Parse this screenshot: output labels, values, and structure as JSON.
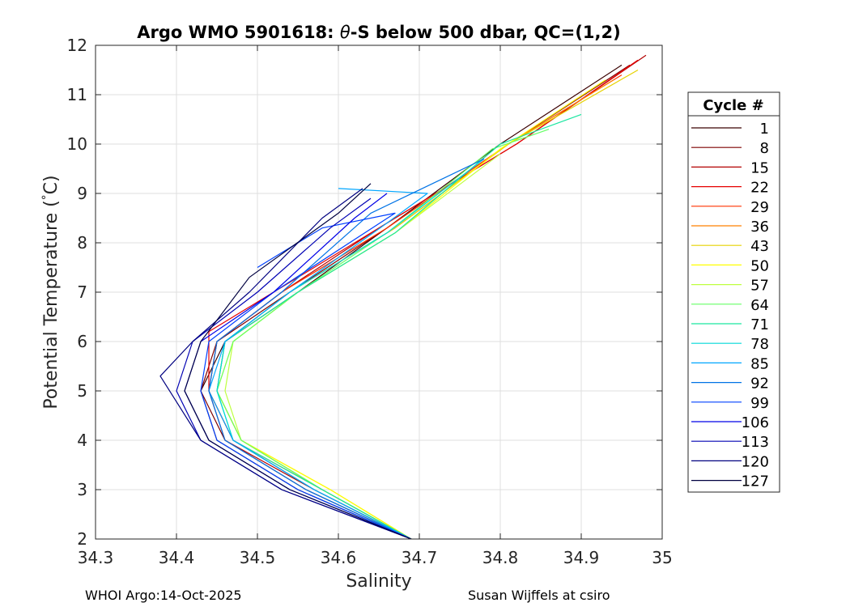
{
  "chart_data": {
    "type": "line",
    "title_prefix": "Argo WMO 5901618: ",
    "title_symbol": "θ",
    "title_suffix": "-S below 500 dbar,  QC=(1,2)",
    "xlabel": "Salinity",
    "ylabel_prefix": "Potential Temperature (",
    "ylabel_degree": "°",
    "ylabel_suffix": "C)",
    "xlim": [
      34.3,
      35
    ],
    "ylim": [
      2,
      12
    ],
    "xticks": [
      "34.3",
      "34.4",
      "34.5",
      "34.6",
      "34.7",
      "34.8",
      "34.9",
      "35"
    ],
    "yticks": [
      "2",
      "3",
      "4",
      "5",
      "6",
      "7",
      "8",
      "9",
      "10",
      "11",
      "12"
    ],
    "grid": true,
    "legend_title": "Cycle #",
    "legend_position": "right",
    "series": [
      {
        "name": "1",
        "color": "#3a0000",
        "x": [
          34.69,
          34.55,
          34.45,
          34.43,
          34.46,
          34.55,
          34.66,
          34.8,
          34.95
        ],
        "y": [
          2.0,
          3.0,
          4.0,
          5.0,
          6.0,
          7.0,
          8.3,
          10.0,
          11.6
        ]
      },
      {
        "name": "8",
        "color": "#7f0000",
        "x": [
          34.69,
          34.56,
          34.46,
          34.43,
          34.45,
          34.54,
          34.66,
          34.81,
          34.96
        ],
        "y": [
          2.0,
          3.0,
          4.0,
          5.0,
          6.0,
          7.0,
          8.3,
          10.0,
          11.6
        ]
      },
      {
        "name": "15",
        "color": "#b30000",
        "x": [
          34.69,
          34.57,
          34.46,
          34.44,
          34.45,
          34.53,
          34.65,
          34.82,
          34.98
        ],
        "y": [
          2.0,
          3.0,
          4.0,
          5.0,
          6.0,
          7.0,
          8.3,
          10.0,
          11.8
        ]
      },
      {
        "name": "22",
        "color": "#e60000",
        "x": [
          34.69,
          34.57,
          34.47,
          34.44,
          34.44,
          34.52,
          34.65,
          34.82,
          34.97
        ],
        "y": [
          2.0,
          3.0,
          4.0,
          5.0,
          6.2,
          7.0,
          8.3,
          10.0,
          11.7
        ]
      },
      {
        "name": "29",
        "color": "#ff3300",
        "x": [
          34.69,
          34.58,
          34.47,
          34.44,
          34.45,
          34.53,
          34.66,
          34.81,
          34.95
        ],
        "y": [
          2.0,
          3.0,
          4.0,
          5.0,
          6.0,
          7.0,
          8.3,
          10.0,
          11.4
        ]
      },
      {
        "name": "36",
        "color": "#ff8000",
        "x": [
          34.69,
          34.58,
          34.48,
          34.45,
          34.46,
          34.54,
          34.67,
          34.81,
          34.94
        ],
        "y": [
          2.0,
          3.0,
          4.0,
          5.0,
          6.0,
          7.0,
          8.3,
          10.0,
          11.3
        ]
      },
      {
        "name": "43",
        "color": "#e6d200",
        "x": [
          34.69,
          34.59,
          34.48,
          34.45,
          34.46,
          34.54,
          34.67,
          34.81,
          34.97
        ],
        "y": [
          2.0,
          3.0,
          4.0,
          5.0,
          6.0,
          7.0,
          8.3,
          10.0,
          11.5
        ]
      },
      {
        "name": "50",
        "color": "#ffff00",
        "x": [
          34.69,
          34.59,
          34.48,
          34.45,
          34.47,
          34.55,
          34.67,
          34.8,
          34.93
        ],
        "y": [
          2.0,
          3.0,
          4.0,
          5.0,
          6.0,
          7.0,
          8.2,
          9.9,
          11.3
        ]
      },
      {
        "name": "57",
        "color": "#bfff40",
        "x": [
          34.69,
          34.58,
          34.48,
          34.46,
          34.47,
          34.55,
          34.67,
          34.8
        ],
        "y": [
          2.0,
          3.0,
          4.0,
          5.0,
          6.0,
          7.0,
          8.2,
          9.8
        ]
      },
      {
        "name": "64",
        "color": "#66ff66",
        "x": [
          34.69,
          34.58,
          34.48,
          34.45,
          34.47,
          34.55,
          34.66,
          34.79,
          34.86
        ],
        "y": [
          2.0,
          3.0,
          4.0,
          5.0,
          6.0,
          7.0,
          8.2,
          9.9,
          10.3
        ]
      },
      {
        "name": "71",
        "color": "#1ae6a0",
        "x": [
          34.69,
          34.58,
          34.47,
          34.45,
          34.46,
          34.55,
          34.67,
          34.8,
          34.9
        ],
        "y": [
          2.0,
          3.0,
          4.0,
          5.0,
          6.0,
          7.0,
          8.2,
          10.0,
          10.6
        ]
      },
      {
        "name": "78",
        "color": "#00d9d9",
        "x": [
          34.69,
          34.57,
          34.47,
          34.45,
          34.46,
          34.54,
          34.66,
          34.78
        ],
        "y": [
          2.0,
          3.0,
          4.0,
          5.0,
          6.0,
          7.0,
          8.2,
          9.7
        ]
      },
      {
        "name": "85",
        "color": "#00a6ff",
        "x": [
          34.69,
          34.57,
          34.47,
          34.44,
          34.46,
          34.54,
          34.66,
          34.71,
          34.6
        ],
        "y": [
          2.0,
          3.0,
          4.0,
          5.0,
          6.0,
          7.0,
          8.4,
          9.0,
          9.1
        ]
      },
      {
        "name": "92",
        "color": "#0073e6",
        "x": [
          34.69,
          34.56,
          34.46,
          34.44,
          34.45,
          34.53,
          34.64,
          34.78
        ],
        "y": [
          2.0,
          3.0,
          4.0,
          5.0,
          6.0,
          7.0,
          8.6,
          9.7
        ]
      },
      {
        "name": "99",
        "color": "#0040ff",
        "x": [
          34.69,
          34.55,
          34.45,
          34.43,
          34.44,
          34.52,
          34.67,
          34.58,
          34.5
        ],
        "y": [
          2.0,
          3.0,
          4.0,
          5.0,
          6.0,
          7.0,
          8.6,
          8.3,
          7.5
        ]
      },
      {
        "name": "106",
        "color": "#0000e6",
        "x": [
          34.69,
          34.54,
          34.44,
          34.41,
          34.43,
          34.52,
          34.62,
          34.66
        ],
        "y": [
          2.0,
          3.0,
          4.0,
          5.0,
          6.0,
          7.0,
          8.5,
          9.0
        ]
      },
      {
        "name": "113",
        "color": "#0000b3",
        "x": [
          34.69,
          34.53,
          34.43,
          34.4,
          34.42,
          34.5,
          34.59,
          34.64
        ],
        "y": [
          2.0,
          3.0,
          4.0,
          5.0,
          6.0,
          7.0,
          8.3,
          8.9
        ]
      },
      {
        "name": "120",
        "color": "#000080",
        "x": [
          34.69,
          34.53,
          34.43,
          34.38,
          34.42,
          34.49,
          34.58,
          34.63
        ],
        "y": [
          2.0,
          3.0,
          4.0,
          5.3,
          6.0,
          7.0,
          8.5,
          9.1
        ]
      },
      {
        "name": "127",
        "color": "#000040",
        "x": [
          34.69,
          34.54,
          34.44,
          34.41,
          34.43,
          34.49,
          34.6,
          34.64
        ],
        "y": [
          2.0,
          3.0,
          4.0,
          5.0,
          6.0,
          7.3,
          8.6,
          9.2
        ]
      }
    ]
  },
  "footer": {
    "left": "WHOI Argo:14-Oct-2025",
    "right": "Susan Wijffels at csiro"
  }
}
